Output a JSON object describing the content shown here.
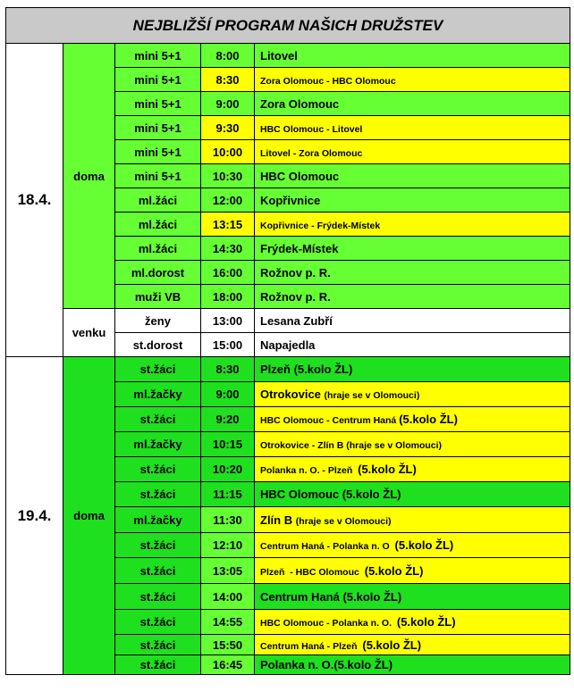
{
  "title": "NEJBLIŽŠÍ PROGRAM NAŠICH DRUŽSTEV",
  "colors": {
    "header": "#c9c9c9",
    "green_light": "#66ff33",
    "green_bright": "#1ee01e",
    "yellow": "#ffff00",
    "white": "#ffffff"
  },
  "days": [
    {
      "date": "18.4.",
      "groups": [
        {
          "place": "doma",
          "bg": "#66ff33",
          "rows": [
            {
              "team": "mini 5+1",
              "team_bg": "#66ff33",
              "time": "8:00",
              "time_bg": "#66ff33",
              "match_bg": "#66ff33",
              "match": [
                {
                  "t": "Litovel",
                  "s": "lg"
                }
              ]
            },
            {
              "team": "mini 5+1",
              "team_bg": "#66ff33",
              "time": "8:30",
              "time_bg": "#ffff00",
              "match_bg": "#ffff00",
              "match": [
                {
                  "t": "Zora Olomouc - HBC Olomouc",
                  "s": "sm"
                }
              ]
            },
            {
              "team": "mini 5+1",
              "team_bg": "#66ff33",
              "time": "9:00",
              "time_bg": "#66ff33",
              "match_bg": "#66ff33",
              "match": [
                {
                  "t": "Zora Olomouc",
                  "s": "lg"
                }
              ]
            },
            {
              "team": "mini 5+1",
              "team_bg": "#66ff33",
              "time": "9:30",
              "time_bg": "#ffff00",
              "match_bg": "#ffff00",
              "match": [
                {
                  "t": "HBC Olomouc - Litovel",
                  "s": "sm"
                }
              ]
            },
            {
              "team": "mini 5+1",
              "team_bg": "#66ff33",
              "time": "10:00",
              "time_bg": "#ffff00",
              "match_bg": "#ffff00",
              "match": [
                {
                  "t": "Litovel - Zora Olomouc",
                  "s": "sm"
                }
              ]
            },
            {
              "team": "mini 5+1",
              "team_bg": "#66ff33",
              "time": "10:30",
              "time_bg": "#66ff33",
              "match_bg": "#66ff33",
              "match": [
                {
                  "t": "HBC Olomouc",
                  "s": "lg"
                }
              ]
            },
            {
              "team": "ml.žáci",
              "team_bg": "#66ff33",
              "time": "12:00",
              "time_bg": "#66ff33",
              "match_bg": "#66ff33",
              "match": [
                {
                  "t": "Kopřivnice",
                  "s": "lg"
                }
              ]
            },
            {
              "team": "ml.žáci",
              "team_bg": "#66ff33",
              "time": "13:15",
              "time_bg": "#ffff00",
              "match_bg": "#ffff00",
              "match": [
                {
                  "t": "Kopřivnice - Frýdek-Místek",
                  "s": "sm"
                }
              ]
            },
            {
              "team": "ml.žáci",
              "team_bg": "#66ff33",
              "time": "14:30",
              "time_bg": "#66ff33",
              "match_bg": "#66ff33",
              "match": [
                {
                  "t": "Frýdek-Místek",
                  "s": "lg"
                }
              ]
            },
            {
              "team": "ml.dorost",
              "team_bg": "#66ff33",
              "time": "16:00",
              "time_bg": "#66ff33",
              "match_bg": "#66ff33",
              "match": [
                {
                  "t": "Rožnov p. R.",
                  "s": "lg"
                }
              ]
            },
            {
              "team": "muži VB",
              "team_bg": "#66ff33",
              "time": "18:00",
              "time_bg": "#66ff33",
              "match_bg": "#66ff33",
              "match": [
                {
                  "t": "Rožnov p. R.",
                  "s": "lg"
                }
              ]
            }
          ]
        },
        {
          "place": "venku",
          "bg": "#ffffff",
          "rows": [
            {
              "team": "ženy",
              "team_bg": "#ffffff",
              "time": "13:00",
              "time_bg": "#ffffff",
              "match_bg": "#ffffff",
              "match": [
                {
                  "t": "Lesana Zubří",
                  "s": "lg"
                }
              ]
            },
            {
              "team": "st.dorost",
              "team_bg": "#ffffff",
              "time": "15:00",
              "time_bg": "#ffffff",
              "match_bg": "#ffffff",
              "match": [
                {
                  "t": "Napajedla",
                  "s": "lg"
                }
              ]
            }
          ]
        }
      ]
    },
    {
      "date": "19.4.",
      "groups": [
        {
          "place": "doma",
          "bg": "#1ee01e",
          "rows": [
            {
              "team": "st.žáci",
              "team_bg": "#1ee01e",
              "time": "8:30",
              "time_bg": "#1ee01e",
              "match_bg": "#1ee01e",
              "match": [
                {
                  "t": "Plzeň (5.kolo ŽL)",
                  "s": "lg"
                }
              ]
            },
            {
              "team": "ml.žačky",
              "team_bg": "#1ee01e",
              "time": "9:00",
              "time_bg": "#1ee01e",
              "match_bg": "#ffff00",
              "match": [
                {
                  "t": "Otrokovice ",
                  "s": "lg"
                },
                {
                  "t": "(hraje se v Olomouci)",
                  "s": "sm"
                }
              ]
            },
            {
              "team": "st.žáci",
              "team_bg": "#1ee01e",
              "time": "9:20",
              "time_bg": "#1ee01e",
              "match_bg": "#ffff00",
              "match": [
                {
                  "t": "HBC Olomouc - Centrum Haná ",
                  "s": "sm"
                },
                {
                  "t": "(5.kolo ŽL)",
                  "s": "lg"
                }
              ]
            },
            {
              "team": "ml.žačky",
              "team_bg": "#1ee01e",
              "time": "10:15",
              "time_bg": "#1ee01e",
              "match_bg": "#ffff00",
              "match": [
                {
                  "t": "Otrokovice - Zlín B (hraje se v Olomouci)",
                  "s": "sm"
                }
              ]
            },
            {
              "team": "st.žáci",
              "team_bg": "#1ee01e",
              "time": "10:20",
              "time_bg": "#1ee01e",
              "match_bg": "#ffff00",
              "match": [
                {
                  "t": "Polanka n. O. - Plzeň  ",
                  "s": "sm"
                },
                {
                  "t": "(5.kolo ŽL)",
                  "s": "lg"
                }
              ]
            },
            {
              "team": "st.žáci",
              "team_bg": "#1ee01e",
              "time": "11:15",
              "time_bg": "#1ee01e",
              "match_bg": "#1ee01e",
              "match": [
                {
                  "t": "HBC Olomouc (5.kolo ŽL)",
                  "s": "lg"
                }
              ]
            },
            {
              "team": "ml.žačky",
              "team_bg": "#1ee01e",
              "time": "11:30",
              "time_bg": "#66ff33",
              "match_bg": "#ffff00",
              "match": [
                {
                  "t": "Zlín B ",
                  "s": "lg"
                },
                {
                  "t": "(hraje se v Olomouci)",
                  "s": "sm"
                }
              ]
            },
            {
              "team": "st.žáci",
              "team_bg": "#1ee01e",
              "time": "12:10",
              "time_bg": "#66ff33",
              "match_bg": "#ffff00",
              "match": [
                {
                  "t": "Centrum Haná - Polanka n. O  ",
                  "s": "sm"
                },
                {
                  "t": "(5.kolo ŽL)",
                  "s": "lg"
                }
              ]
            },
            {
              "team": "st.žáci",
              "team_bg": "#1ee01e",
              "time": "13:05",
              "time_bg": "#66ff33",
              "match_bg": "#ffff00",
              "match": [
                {
                  "t": "Plzeň  - HBC Olomouc  ",
                  "s": "sm"
                },
                {
                  "t": "(5.kolo ŽL)",
                  "s": "lg"
                }
              ]
            },
            {
              "team": "st.žáci",
              "team_bg": "#1ee01e",
              "time": "14:00",
              "time_bg": "#66ff33",
              "match_bg": "#1ee01e",
              "match": [
                {
                  "t": "Centrum Haná (5.kolo ŽL)",
                  "s": "lg"
                }
              ]
            },
            {
              "team": "st.žáci",
              "team_bg": "#1ee01e",
              "time": "14:55",
              "time_bg": "#66ff33",
              "match_bg": "#ffff00",
              "match": [
                {
                  "t": "HBC Olomouc - Polanka n. O.  ",
                  "s": "sm"
                },
                {
                  "t": "(5.kolo ŽL)",
                  "s": "lg"
                }
              ]
            },
            {
              "team": "st.žáci",
              "team_bg": "#1ee01e",
              "time": "15:50",
              "time_bg": "#66ff33",
              "match_bg": "#ffff00",
              "match": [
                {
                  "t": "Centrum Haná - Plzeň  ",
                  "s": "sm"
                },
                {
                  "t": "(5.kolo ŽL)",
                  "s": "lg"
                }
              ]
            },
            {
              "team": "st.žáci",
              "team_bg": "#1ee01e",
              "time": "16:45",
              "time_bg": "#66ff33",
              "match_bg": "#1ee01e",
              "match": [
                {
                  "t": "Polanka n. O.(5.kolo ŽL)",
                  "s": "lg"
                }
              ]
            }
          ]
        }
      ]
    }
  ]
}
